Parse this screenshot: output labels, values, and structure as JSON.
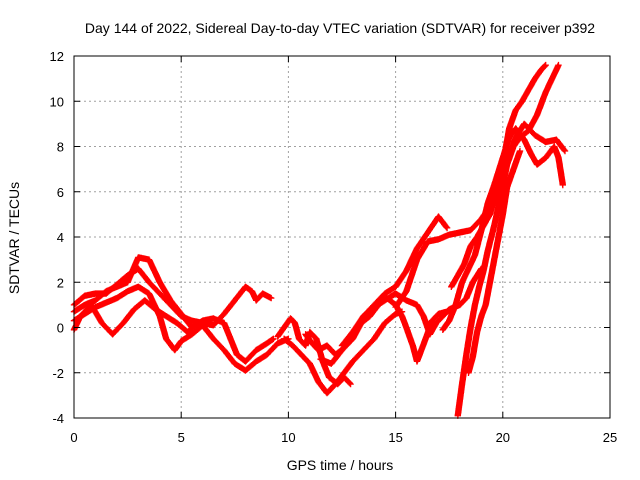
{
  "chart_data": {
    "type": "scatter",
    "title": "Day 144 of 2022, Sidereal Day-to-day VTEC variation (SDTVAR) for receiver p392",
    "xlabel": "GPS time / hours",
    "ylabel": "SDTVAR / TECUs",
    "xlim": [
      0,
      25
    ],
    "ylim": [
      -4,
      12
    ],
    "x_ticks": [
      0,
      5,
      10,
      15,
      20,
      25
    ],
    "y_ticks": [
      -4,
      -2,
      0,
      2,
      4,
      6,
      8,
      10,
      12
    ],
    "x_tick_labels": [
      "0",
      "5",
      "10",
      "15",
      "20",
      "25"
    ],
    "y_tick_labels": [
      "-4",
      "-2",
      "0",
      "2",
      "4",
      "6",
      "8",
      "10",
      "12"
    ],
    "grid": true,
    "marker": "plus",
    "series_color": "#ff0000",
    "series": [
      {
        "points": [
          [
            0,
            1.0
          ],
          [
            0.5,
            1.4
          ],
          [
            1,
            1.5
          ],
          [
            1.5,
            1.5
          ],
          [
            2,
            1.9
          ],
          [
            2.5,
            2.3
          ],
          [
            3,
            2.6
          ],
          [
            3.5,
            2.0
          ],
          [
            4,
            1.5
          ],
          [
            4.5,
            1.0
          ],
          [
            5,
            0.5
          ],
          [
            5.5,
            0.3
          ],
          [
            6,
            0.2
          ],
          [
            6.5,
            0.1
          ],
          [
            7,
            0.6
          ],
          [
            7.5,
            1.2
          ],
          [
            8,
            1.8
          ],
          [
            8.3,
            1.6
          ],
          [
            8.5,
            1.2
          ],
          [
            8.8,
            1.5
          ],
          [
            9.2,
            1.3
          ]
        ]
      },
      {
        "points": [
          [
            0,
            0.7
          ],
          [
            0.5,
            1.0
          ],
          [
            1,
            1.2
          ],
          [
            1.5,
            1.6
          ],
          [
            2,
            1.8
          ],
          [
            2.5,
            2.0
          ],
          [
            3,
            3.1
          ],
          [
            3.5,
            3.0
          ],
          [
            4,
            2.0
          ],
          [
            4.5,
            1.2
          ],
          [
            5,
            0.6
          ],
          [
            5.5,
            0.0
          ],
          [
            6,
            0.3
          ],
          [
            6.5,
            0.4
          ],
          [
            7,
            0.2
          ],
          [
            7.3,
            -0.5
          ],
          [
            7.6,
            -1.2
          ],
          [
            8,
            -1.5
          ],
          [
            8.5,
            -1.0
          ],
          [
            9,
            -0.7
          ],
          [
            9.3,
            -0.5
          ]
        ]
      },
      {
        "points": [
          [
            0,
            0.3
          ],
          [
            0.5,
            0.6
          ],
          [
            1,
            0.9
          ],
          [
            1.5,
            1.1
          ],
          [
            2,
            1.3
          ],
          [
            2.5,
            1.6
          ],
          [
            3,
            1.8
          ],
          [
            3.5,
            1.5
          ],
          [
            4,
            0.5
          ],
          [
            4.3,
            -0.5
          ],
          [
            4.7,
            -1.0
          ],
          [
            5,
            -0.6
          ],
          [
            5.5,
            -0.3
          ],
          [
            6,
            0.1
          ],
          [
            6.5,
            -0.5
          ],
          [
            7,
            -1.0
          ],
          [
            7.5,
            -1.6
          ],
          [
            8,
            -1.9
          ],
          [
            8.5,
            -1.5
          ],
          [
            9,
            -1.2
          ],
          [
            9.5,
            -0.7
          ],
          [
            10,
            -0.5
          ]
        ]
      },
      {
        "points": [
          [
            0,
            -0.1
          ],
          [
            0.3,
            0.5
          ],
          [
            0.8,
            1.0
          ],
          [
            1.3,
            0.2
          ],
          [
            1.8,
            -0.3
          ],
          [
            2.3,
            0.2
          ],
          [
            2.8,
            0.8
          ],
          [
            3.3,
            1.2
          ],
          [
            3.8,
            0.8
          ],
          [
            4.3,
            0.5
          ],
          [
            4.8,
            0.2
          ],
          [
            5.3,
            -0.2
          ],
          [
            5.8,
            0.2
          ]
        ]
      },
      {
        "points": [
          [
            9.5,
            -0.4
          ],
          [
            9.8,
            0.0
          ],
          [
            10.1,
            0.4
          ],
          [
            10.3,
            0.2
          ],
          [
            10.5,
            -0.5
          ],
          [
            10.8,
            -0.8
          ],
          [
            11,
            -0.2
          ],
          [
            11.3,
            -0.5
          ],
          [
            11.6,
            -1.5
          ],
          [
            11.9,
            -2.2
          ],
          [
            12.3,
            -2.5
          ],
          [
            12.6,
            -2.2
          ],
          [
            12.9,
            -2.5
          ]
        ]
      },
      {
        "points": [
          [
            9.8,
            -0.5
          ],
          [
            10.2,
            -0.8
          ],
          [
            10.6,
            -1.2
          ],
          [
            11,
            -1.6
          ],
          [
            11.4,
            -2.4
          ],
          [
            11.8,
            -2.9
          ],
          [
            12.2,
            -2.5
          ],
          [
            12.6,
            -2.0
          ],
          [
            13,
            -1.5
          ],
          [
            13.5,
            -1.0
          ],
          [
            14,
            -0.5
          ],
          [
            14.5,
            0.2
          ],
          [
            15,
            0.6
          ],
          [
            15.3,
            0.7
          ]
        ]
      },
      {
        "points": [
          [
            10.8,
            -0.3
          ],
          [
            11.1,
            -0.7
          ],
          [
            11.4,
            -1.0
          ],
          [
            11.8,
            -0.8
          ],
          [
            12.2,
            -1.2
          ],
          [
            12.6,
            -0.9
          ],
          [
            13,
            -0.5
          ],
          [
            13.4,
            0.2
          ],
          [
            13.8,
            0.5
          ],
          [
            14.2,
            1.0
          ],
          [
            14.6,
            1.3
          ],
          [
            15,
            1.0
          ],
          [
            15.3,
            0.5
          ],
          [
            15.5,
            0.0
          ],
          [
            15.8,
            -0.8
          ],
          [
            16,
            -1.5
          ],
          [
            16.2,
            -1.0
          ],
          [
            16.4,
            -0.5
          ],
          [
            16.7,
            0.3
          ],
          [
            17,
            0.6
          ],
          [
            17.4,
            0.7
          ],
          [
            17.8,
            0.9
          ]
        ]
      },
      {
        "points": [
          [
            11.5,
            -1.4
          ],
          [
            12,
            -1.6
          ],
          [
            12.5,
            -1.0
          ],
          [
            13,
            -0.3
          ],
          [
            13.5,
            0.5
          ],
          [
            14,
            0.9
          ],
          [
            14.5,
            1.2
          ],
          [
            15,
            1.5
          ],
          [
            15.5,
            1.2
          ],
          [
            16,
            1.0
          ],
          [
            16.3,
            0.5
          ],
          [
            16.6,
            -0.3
          ],
          [
            16.9,
            0.2
          ],
          [
            17.2,
            0.5
          ],
          [
            17.5,
            0.8
          ],
          [
            18,
            1.0
          ],
          [
            18.3,
            1.3
          ],
          [
            18.6,
            2.0
          ],
          [
            19,
            2.6
          ]
        ]
      },
      {
        "points": [
          [
            12.5,
            -0.8
          ],
          [
            13,
            -0.2
          ],
          [
            13.5,
            0.5
          ],
          [
            14,
            1.0
          ],
          [
            14.5,
            1.5
          ],
          [
            15,
            1.8
          ],
          [
            15.5,
            2.5
          ],
          [
            16,
            3.5
          ],
          [
            16.5,
            4.2
          ],
          [
            17,
            4.9
          ],
          [
            17.4,
            4.4
          ]
        ]
      },
      {
        "points": [
          [
            15,
            0.9
          ],
          [
            15.5,
            1.6
          ],
          [
            16,
            3.0
          ],
          [
            16.5,
            3.8
          ],
          [
            17,
            3.9
          ],
          [
            17.5,
            4.1
          ],
          [
            18,
            4.2
          ],
          [
            18.5,
            4.3
          ],
          [
            19,
            4.8
          ],
          [
            19.3,
            5.2
          ],
          [
            19.6,
            5.8
          ],
          [
            20,
            6.8
          ],
          [
            20.3,
            7.6
          ],
          [
            20.6,
            8.4
          ],
          [
            21,
            9.0
          ],
          [
            21.5,
            8.5
          ],
          [
            22,
            8.2
          ],
          [
            22.5,
            8.3
          ],
          [
            22.9,
            7.8
          ]
        ]
      },
      {
        "points": [
          [
            17.2,
            -0.1
          ],
          [
            17.5,
            0.3
          ],
          [
            17.8,
            1.0
          ],
          [
            18.1,
            2.0
          ],
          [
            18.4,
            2.6
          ],
          [
            18.7,
            3.2
          ],
          [
            19,
            4.3
          ],
          [
            19.3,
            5.5
          ],
          [
            19.6,
            6.3
          ],
          [
            20,
            7.5
          ],
          [
            20.3,
            8.4
          ],
          [
            20.6,
            8.8
          ],
          [
            21,
            8.3
          ],
          [
            21.3,
            7.7
          ],
          [
            21.6,
            7.2
          ],
          [
            22,
            7.5
          ],
          [
            22.4,
            8.0
          ],
          [
            22.6,
            7.5
          ],
          [
            22.8,
            6.3
          ]
        ]
      },
      {
        "points": [
          [
            17.9,
            -3.9
          ],
          [
            18.1,
            -2.5
          ],
          [
            18.3,
            -1.2
          ],
          [
            18.5,
            0.0
          ],
          [
            18.7,
            1.0
          ],
          [
            18.9,
            1.8
          ],
          [
            19.1,
            2.5
          ],
          [
            19.3,
            3.4
          ],
          [
            19.6,
            4.5
          ],
          [
            19.9,
            5.8
          ],
          [
            20.2,
            7.2
          ],
          [
            20.5,
            8.0
          ],
          [
            20.8,
            8.4
          ],
          [
            21.2,
            8.7
          ],
          [
            21.6,
            9.4
          ],
          [
            22,
            10.4
          ],
          [
            22.3,
            11.0
          ],
          [
            22.6,
            11.6
          ]
        ]
      },
      {
        "points": [
          [
            17.6,
            1.8
          ],
          [
            17.9,
            2.3
          ],
          [
            18.2,
            2.8
          ],
          [
            18.5,
            3.6
          ],
          [
            18.8,
            4.0
          ],
          [
            19.1,
            4.5
          ],
          [
            19.4,
            5.0
          ],
          [
            19.7,
            6.0
          ],
          [
            20,
            7.2
          ],
          [
            20.3,
            8.8
          ],
          [
            20.6,
            9.6
          ],
          [
            20.9,
            10.0
          ],
          [
            21.2,
            10.5
          ],
          [
            21.5,
            11.0
          ],
          [
            21.8,
            11.4
          ],
          [
            22,
            11.6
          ]
        ]
      },
      {
        "points": [
          [
            18.4,
            -2.0
          ],
          [
            18.6,
            -1.3
          ],
          [
            18.8,
            -0.2
          ],
          [
            19,
            0.5
          ],
          [
            19.2,
            1.0
          ],
          [
            19.4,
            2.0
          ],
          [
            19.6,
            3.0
          ],
          [
            19.8,
            4.0
          ],
          [
            20,
            5.0
          ],
          [
            20.2,
            6.2
          ],
          [
            20.5,
            7.0
          ],
          [
            20.8,
            7.8
          ]
        ]
      }
    ]
  }
}
